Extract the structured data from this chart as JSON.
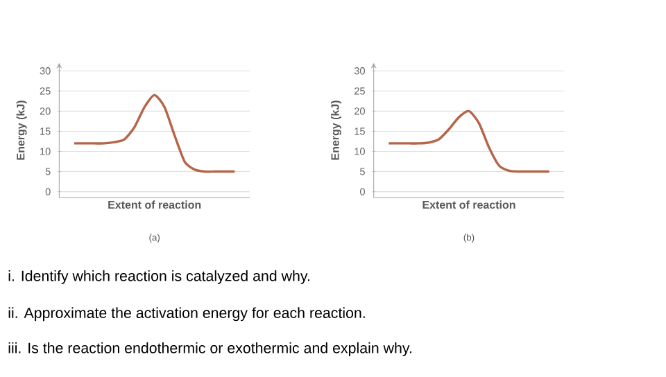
{
  "chart_data": [
    {
      "type": "line",
      "ylabel": "Energy (kJ)",
      "xlabel": "Extent of reaction",
      "annotations": [
        "(a)"
      ],
      "categories": [
        null,
        null,
        null,
        null,
        null,
        null,
        null,
        null,
        null,
        null,
        null,
        null,
        null,
        null,
        null,
        null,
        null
      ],
      "series": [
        {
          "color": "#b5654a",
          "values": [
            12,
            12,
            12,
            12,
            12.3,
            13,
            16,
            21,
            24,
            21,
            14,
            7.5,
            5.5,
            5,
            5,
            5,
            5
          ]
        }
      ],
      "ylim": [
        -1.5,
        32
      ],
      "yticks": [
        0,
        5,
        10,
        15,
        20,
        25,
        30
      ],
      "grid": "y"
    },
    {
      "type": "line",
      "ylabel": "Energy (kJ)",
      "xlabel": "Extent of reaction",
      "annotations": [
        "(b)"
      ],
      "categories": [
        null,
        null,
        null,
        null,
        null,
        null,
        null,
        null,
        null,
        null,
        null,
        null,
        null,
        null,
        null,
        null,
        null
      ],
      "series": [
        {
          "color": "#b5654a",
          "values": [
            12,
            12,
            12,
            12,
            12.2,
            13,
            15.5,
            18.5,
            20,
            17,
            11,
            6.5,
            5.2,
            5,
            5,
            5,
            5
          ]
        }
      ],
      "ylim": [
        -1.5,
        32
      ],
      "yticks": [
        0,
        5,
        10,
        15,
        20,
        25,
        30
      ],
      "grid": "y"
    },
    {
      "type": "other",
      "annotations": [
        "i. Identify which reaction is catalyzed and why.",
        "ii. Approximate the activation energy for each reaction.",
        "iii. Is the reaction endothermic or exothermic and explain why."
      ]
    }
  ]
}
